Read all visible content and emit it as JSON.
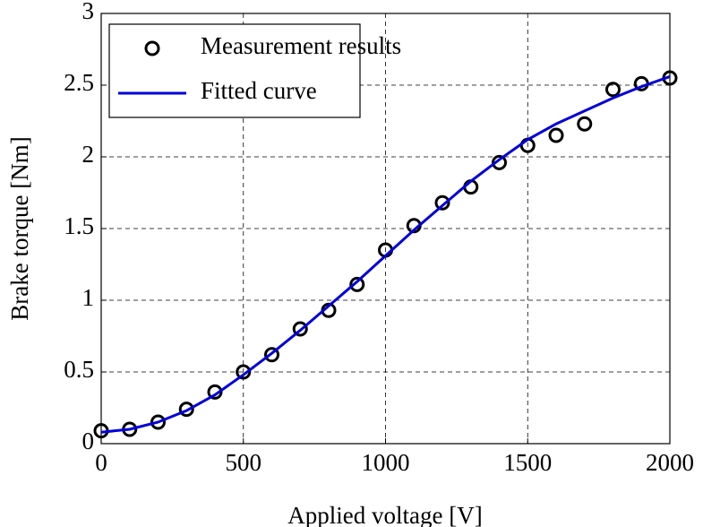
{
  "chart_data": {
    "type": "line",
    "x_label": "Applied voltage [V]",
    "y_label": "Brake torque [Nm]",
    "xlim": [
      0,
      2000
    ],
    "xticks": [
      0,
      500,
      1000,
      1500,
      2000
    ],
    "ylim": [
      0,
      3
    ],
    "yticks": [
      0,
      0.5,
      1,
      1.5,
      2,
      2.5,
      3
    ],
    "grid": true,
    "legend": "upper-left",
    "series": [
      {
        "name": "Measurement results",
        "color": "#000000",
        "marker": "circle",
        "x": [
          0,
          100,
          200,
          300,
          400,
          500,
          600,
          700,
          800,
          900,
          1000,
          1100,
          1200,
          1300,
          1400,
          1500,
          1600,
          1700,
          1800,
          1900,
          2000
        ],
        "values": [
          0.09,
          0.1,
          0.15,
          0.24,
          0.36,
          0.5,
          0.62,
          0.8,
          0.93,
          1.11,
          1.35,
          1.52,
          1.68,
          1.79,
          1.96,
          2.08,
          2.15,
          2.23,
          2.47,
          2.51,
          2.55
        ]
      },
      {
        "name": "Fitted curve",
        "color": "#0000dd",
        "marker": "none",
        "x": [
          0,
          100,
          200,
          300,
          400,
          500,
          600,
          700,
          800,
          900,
          1000,
          1100,
          1200,
          1300,
          1400,
          1500,
          1600,
          1700,
          1800,
          1900,
          2000
        ],
        "values": [
          0.08,
          0.1,
          0.15,
          0.23,
          0.34,
          0.48,
          0.63,
          0.79,
          0.96,
          1.13,
          1.31,
          1.49,
          1.66,
          1.83,
          1.98,
          2.12,
          2.23,
          2.32,
          2.41,
          2.49,
          2.56
        ]
      }
    ]
  }
}
